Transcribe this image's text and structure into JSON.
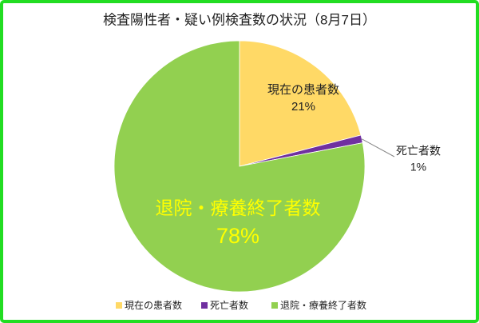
{
  "chart_data": {
    "type": "pie",
    "title": "検査陽性者・疑い例検査数の状況（8月7日）",
    "categories": [
      "現在の患者数",
      "死亡者数",
      "退院・療養終了者数"
    ],
    "values": [
      21,
      1,
      78
    ],
    "value_labels": [
      "21%",
      "1%",
      "78%"
    ],
    "colors": [
      "#ffd966",
      "#7030a0",
      "#92d050"
    ],
    "legend": "bottom"
  }
}
